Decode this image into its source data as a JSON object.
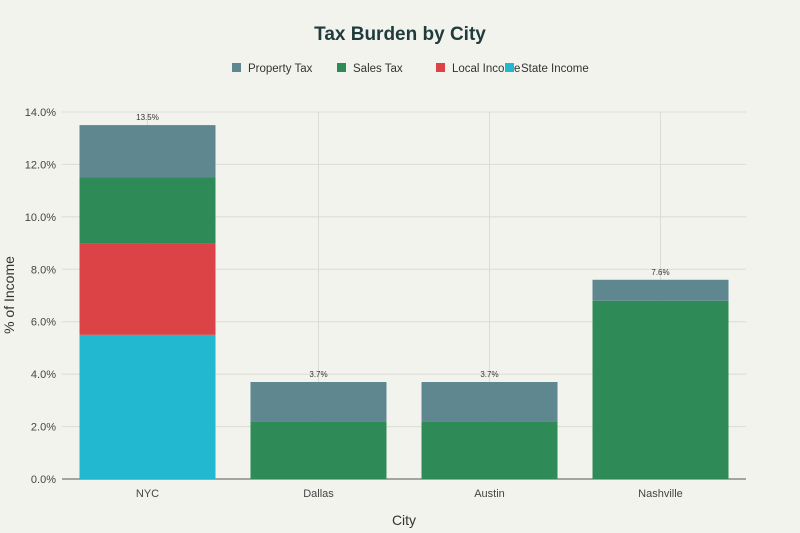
{
  "chart_data": {
    "type": "bar",
    "stacked": true,
    "title": "Tax Burden by City",
    "xlabel": "City",
    "ylabel": "% of Income",
    "ylim": [
      0,
      14
    ],
    "yticks": [
      0,
      2,
      4,
      6,
      8,
      10,
      12,
      14
    ],
    "ytick_labels": [
      "0.0%",
      "2.0%",
      "4.0%",
      "6.0%",
      "8.0%",
      "10.0%",
      "12.0%",
      "14.0%"
    ],
    "categories": [
      "NYC",
      "Dallas",
      "Austin",
      "Nashville"
    ],
    "series": [
      {
        "name": "State Income",
        "color": "#22b8cf",
        "values": [
          5.5,
          0,
          0,
          0
        ]
      },
      {
        "name": "Local Income",
        "color": "#dc4346",
        "values": [
          3.5,
          0,
          0,
          0
        ]
      },
      {
        "name": "Sales Tax",
        "color": "#2e8b57",
        "values": [
          2.5,
          2.2,
          2.2,
          6.8
        ]
      },
      {
        "name": "Property Tax",
        "color": "#5e8790",
        "values": [
          2.0,
          1.5,
          1.5,
          0.8
        ]
      }
    ],
    "legend_order": [
      "Property Tax",
      "Sales Tax",
      "Local Income",
      "State Income"
    ],
    "legend_placement": "top-center",
    "totals": [
      "13.5%",
      "3.7%",
      "3.7%",
      "7.6%"
    ],
    "grid": true
  }
}
